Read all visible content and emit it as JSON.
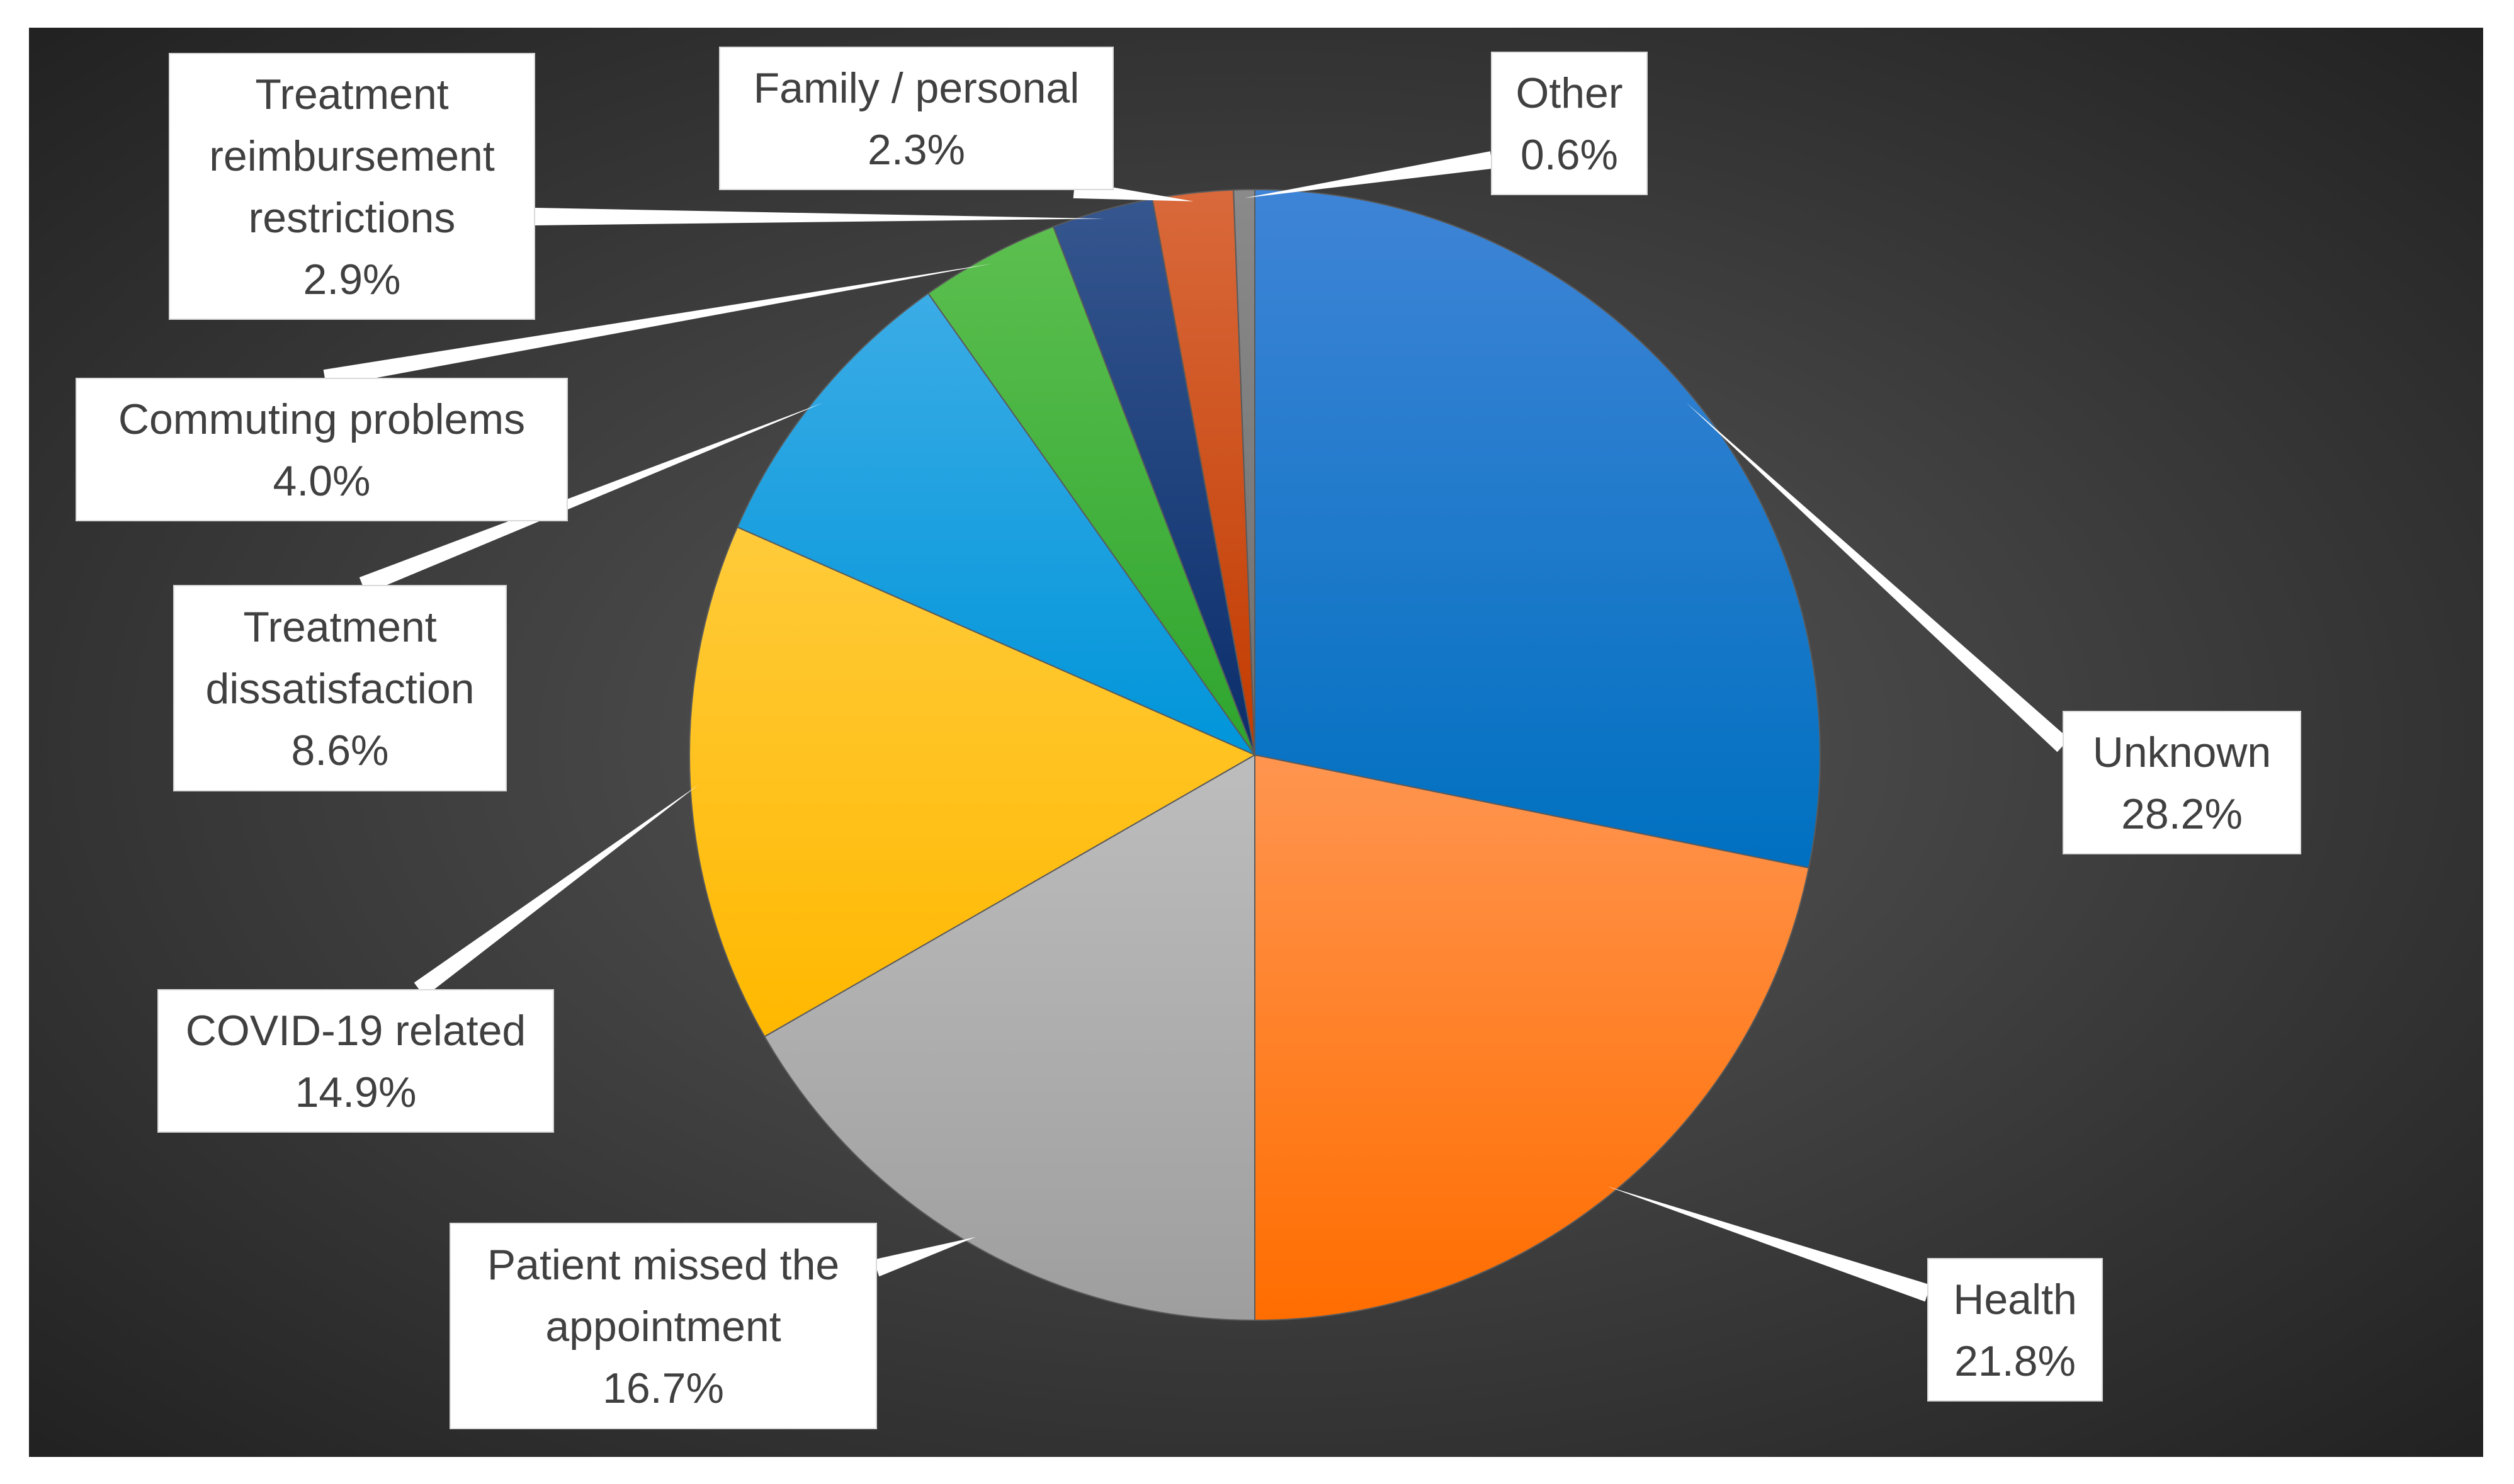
{
  "chart_data": {
    "type": "pie",
    "start_angle_deg": 0,
    "direction": "clockwise",
    "slices": [
      {
        "label_lines": [
          "Unknown"
        ],
        "value": 28.2,
        "value_label": "28.2%",
        "color": "#0070C0",
        "color_light": "#3F84D6"
      },
      {
        "label_lines": [
          "Health"
        ],
        "value": 21.8,
        "value_label": "21.8%",
        "color": "#FF6D00",
        "color_light": "#FF9550"
      },
      {
        "label_lines": [
          "Patient missed the",
          "appointment"
        ],
        "value": 16.7,
        "value_label": "16.7%",
        "color": "#9E9E9E",
        "color_light": "#BDBDBD"
      },
      {
        "label_lines": [
          "COVID-19 related"
        ],
        "value": 14.9,
        "value_label": "14.9%",
        "color": "#FFB800",
        "color_light": "#FFCB3A"
      },
      {
        "label_lines": [
          "Treatment",
          "dissatisfaction"
        ],
        "value": 8.6,
        "value_label": "8.6%",
        "color": "#0095D9",
        "color_light": "#3BACE6"
      },
      {
        "label_lines": [
          "Commuting problems"
        ],
        "value": 4.0,
        "value_label": "4.0%",
        "color": "#2EA52E",
        "color_light": "#5CBF4F"
      },
      {
        "label_lines": [
          "Treatment",
          "reimbursement",
          "restrictions"
        ],
        "value": 2.9,
        "value_label": "2.9%",
        "color": "#0B2E6B",
        "color_light": "#35568F"
      },
      {
        "label_lines": [
          "Family / personal"
        ],
        "value": 2.3,
        "value_label": "2.3%",
        "color": "#C23B00",
        "color_light": "#D9693B"
      },
      {
        "label_lines": [
          "Other"
        ],
        "value": 0.6,
        "value_label": "0.6%",
        "color": "#6F6F6F",
        "color_light": "#8A8A8A"
      }
    ],
    "background": {
      "color_center": "#5A5A5A",
      "color_edge": "#1E1E1E"
    }
  }
}
